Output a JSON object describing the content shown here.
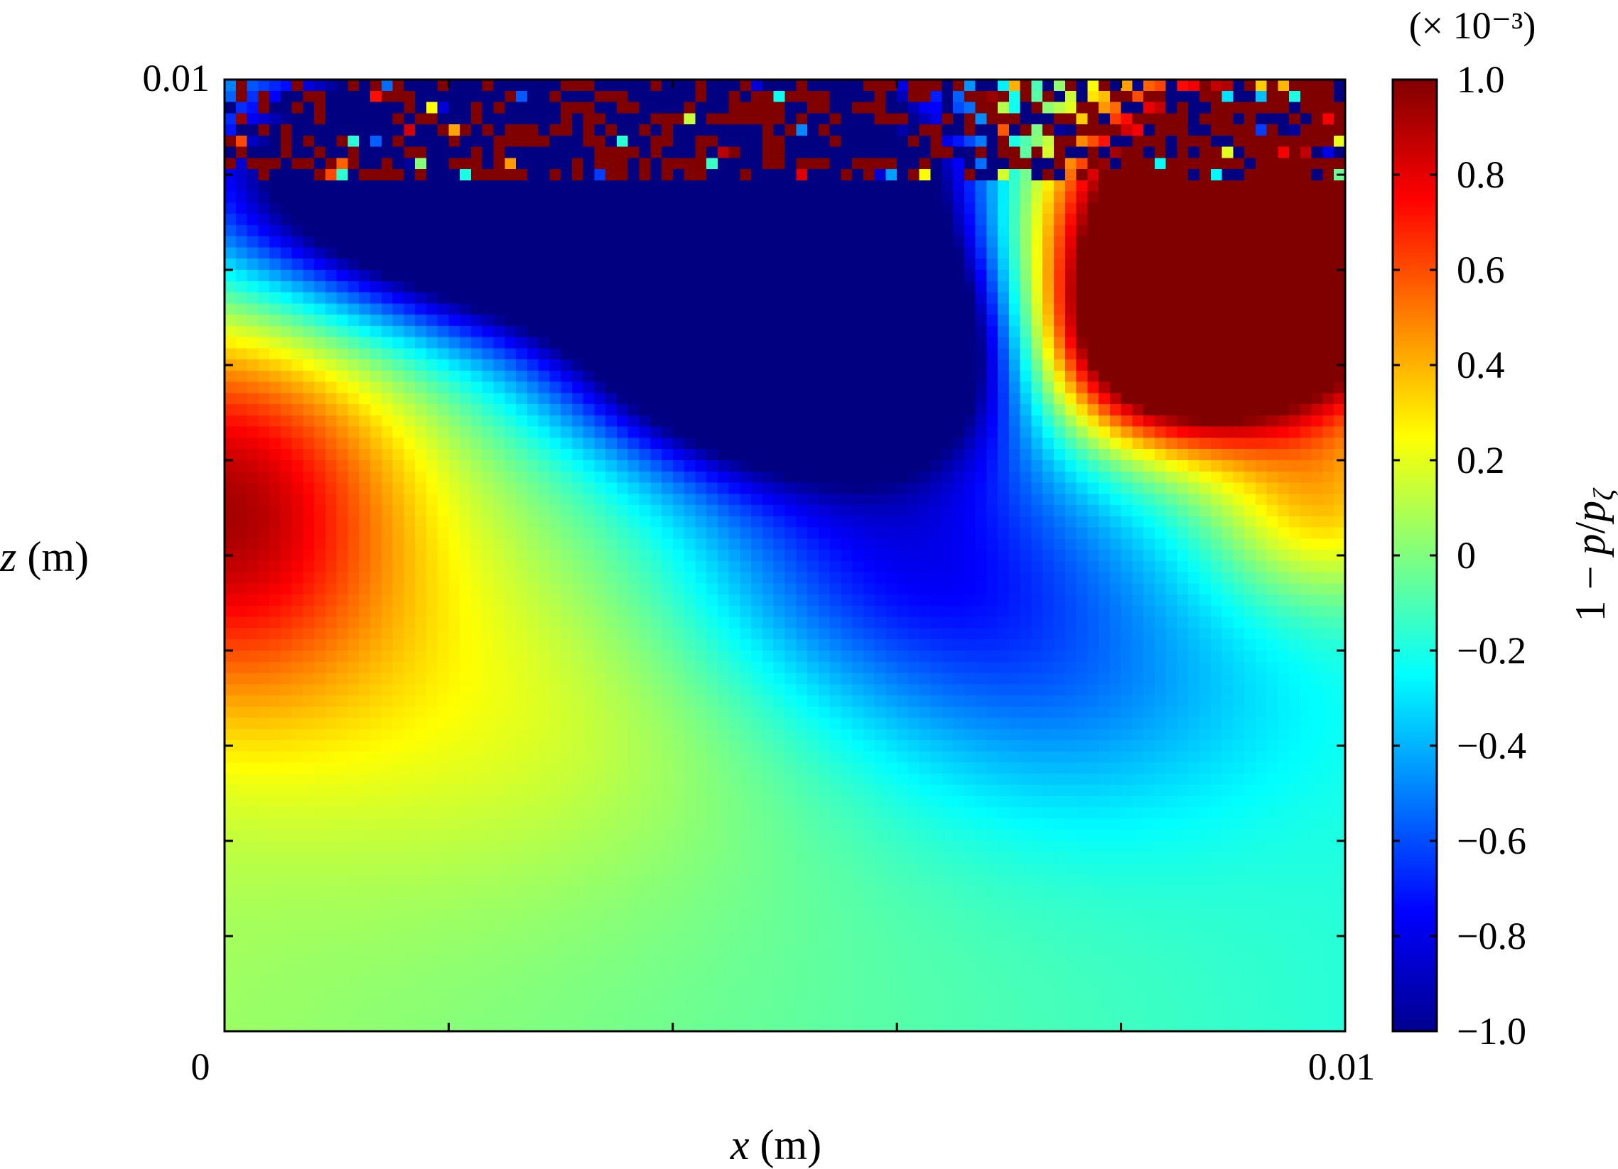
{
  "chart_data": {
    "type": "heatmap",
    "title": "",
    "xlabel": {
      "symbol": "x",
      "unit": " (m)"
    },
    "ylabel": {
      "symbol": "z",
      "unit": " (m)"
    },
    "xlim": [
      0,
      0.01
    ],
    "ylim": [
      0,
      0.01
    ],
    "x_tick_labels": [
      "0",
      "0.01"
    ],
    "y_tick_labels": [
      "0.01"
    ],
    "x_tick_values": [
      0,
      0.002,
      0.004,
      0.006,
      0.008,
      0.01
    ],
    "y_tick_values": [
      0,
      0.001,
      0.002,
      0.003,
      0.004,
      0.005,
      0.006,
      0.007,
      0.008,
      0.009,
      0.01
    ],
    "colorscale": "jet",
    "grid": false,
    "colorbar": {
      "label": "1 − p/pζ",
      "multiplier": "(× 10⁻³)",
      "range": [
        -1.0,
        1.0
      ],
      "ticks": [
        "1.0",
        "0.8",
        "0.6",
        "0.4",
        "0.2",
        "0",
        "−0.2",
        "−0.4",
        "−0.6",
        "−0.8",
        "−1.0"
      ],
      "tick_values": [
        1.0,
        0.8,
        0.6,
        0.4,
        0.2,
        0,
        -0.2,
        -0.4,
        -0.6,
        -0.8,
        -1.0
      ]
    },
    "field_features": [
      {
        "region": "upper-left",
        "x": 0.0012,
        "z": 0.0095,
        "value": -1.0
      },
      {
        "region": "deep trough",
        "x": 0.005,
        "z": 0.0072,
        "value": -1.0
      },
      {
        "region": "upper-right",
        "x": 0.0088,
        "z": 0.0085,
        "value": 1.0
      },
      {
        "region": "left lobe",
        "x": 0.0002,
        "z": 0.0055,
        "value": 0.75
      },
      {
        "region": "lower field",
        "x": 0.004,
        "z": 0.001,
        "value": 0.05
      },
      {
        "region": "lower right",
        "x": 0.009,
        "z": 0.002,
        "value": -0.15
      }
    ],
    "noise_band": {
      "z_from": 0.0089,
      "z_to": 0.01,
      "value_range": [
        -1.0,
        1.0
      ]
    }
  }
}
